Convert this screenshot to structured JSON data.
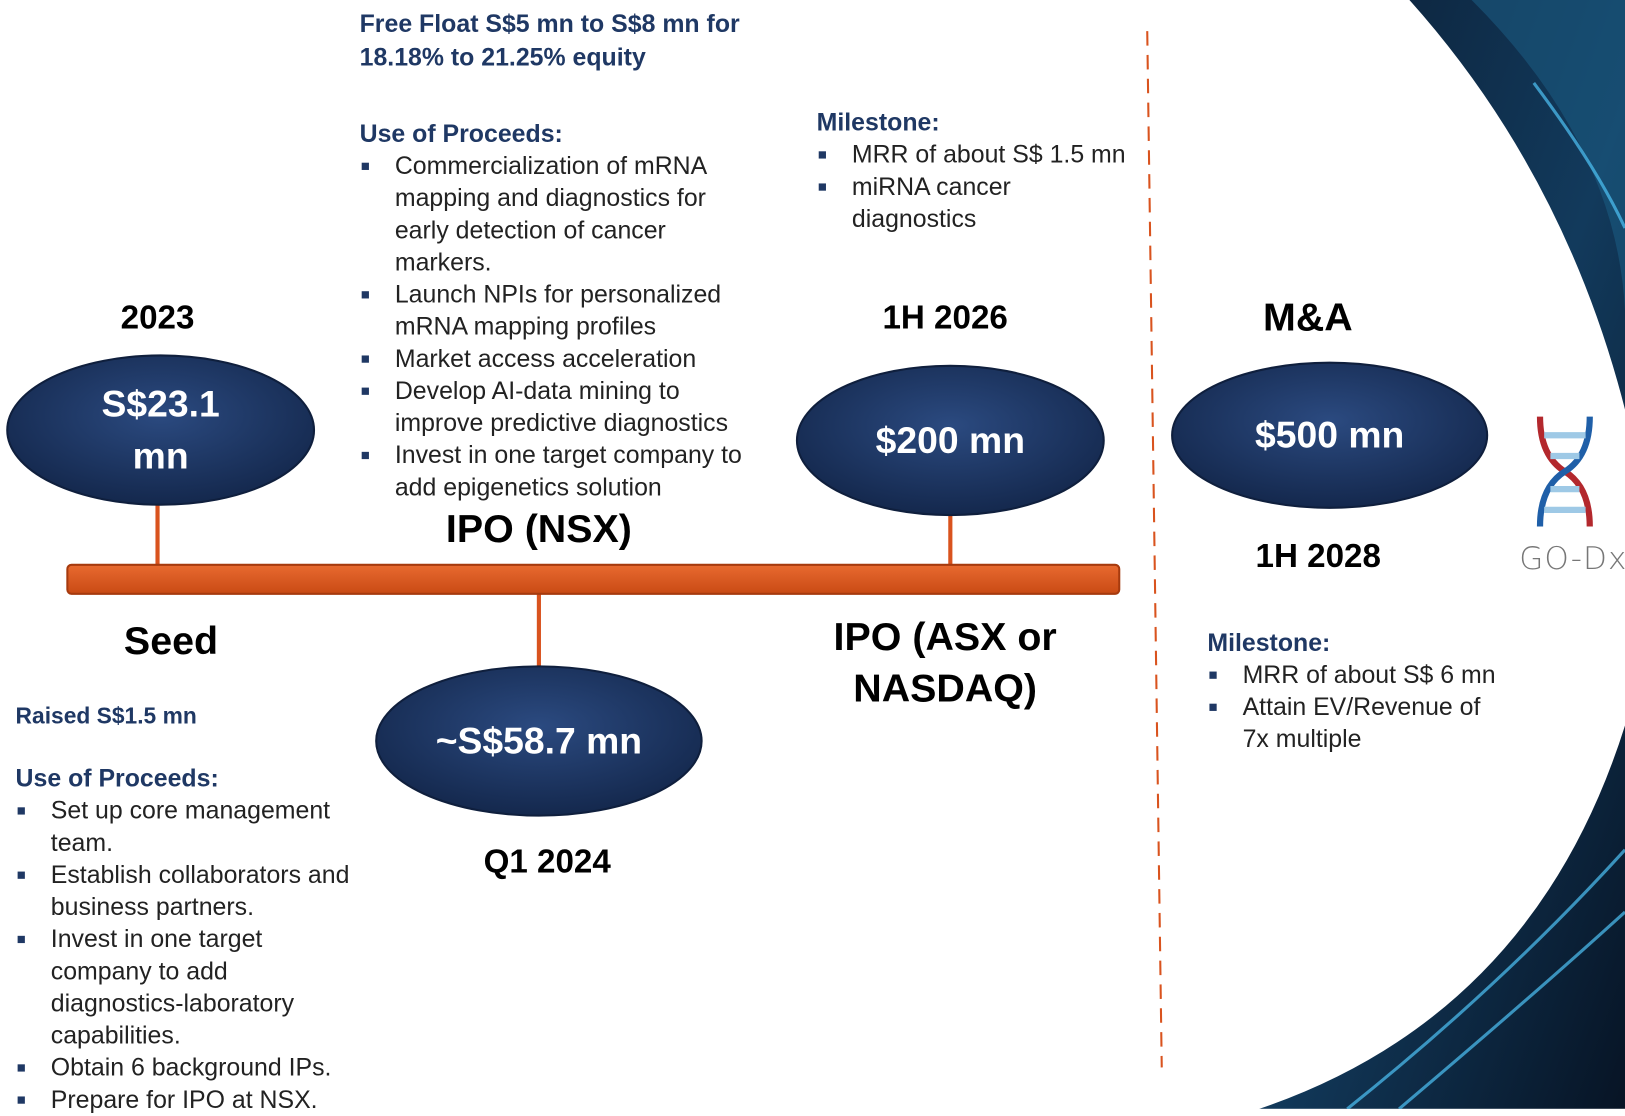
{
  "seed": {
    "date": "2023",
    "name": "Seed",
    "valuation": "S$23.1 mn",
    "raised": "Raised S$1.5 mn",
    "notes_heading": "Use of Proceeds:",
    "notes": [
      "Set up core management team.",
      "Establish collaborators and business partners.",
      "Invest in one target company to add diagnostics-laboratory capabilities.",
      "Obtain 6 background IPs.",
      "Prepare for IPO at NSX."
    ]
  },
  "ipo_nsx": {
    "date": "Q1 2024",
    "name": "IPO (NSX)",
    "valuation": "~S$58.7 mn",
    "free_float": "Free Float S$5 mn to S$8 mn for 18.18% to 21.25% equity",
    "notes_heading": "Use of Proceeds:",
    "notes": [
      "Commercialization of mRNA mapping and diagnostics for early detection of cancer markers.",
      "Launch NPIs for personalized mRNA mapping profiles",
      "Market access acceleration",
      "Develop AI-data mining to improve predictive diagnostics",
      "Invest in one target company to add epigenetics solution"
    ]
  },
  "ipo_asx": {
    "date": "1H 2026",
    "name": "IPO (ASX or NASDAQ)",
    "valuation": "$200 mn",
    "notes_heading": "Milestone:",
    "notes": [
      "MRR of about S$ 1.5 mn",
      "miRNA cancer diagnostics"
    ]
  },
  "ma": {
    "date": "1H 2028",
    "name": "M&A",
    "valuation": "$500 mn",
    "notes_heading": "Milestone:",
    "notes": [
      "MRR of about S$ 6 mn",
      "Attain EV/Revenue of 7x multiple"
    ]
  },
  "logo": "GO-Dx"
}
